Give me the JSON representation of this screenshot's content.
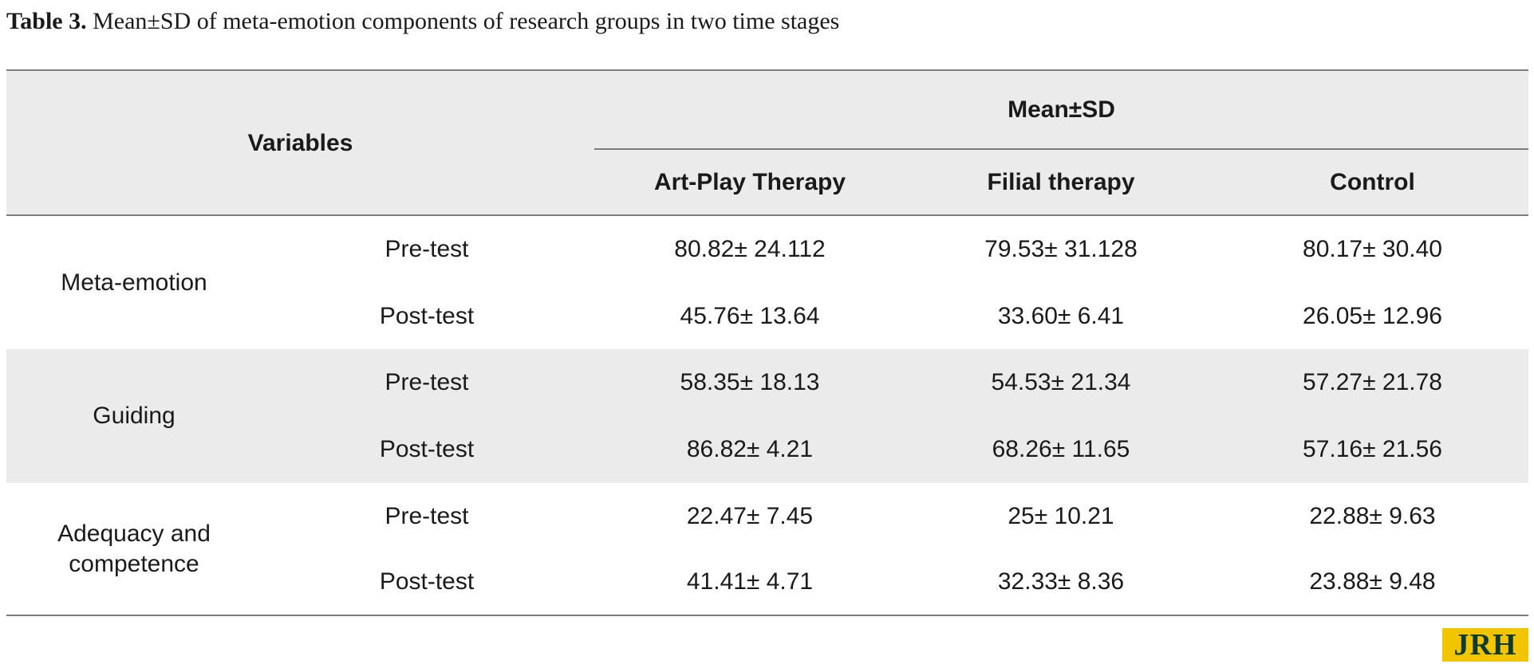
{
  "caption": {
    "label": "Table 3.",
    "text": "Mean±SD of meta-emotion components of research groups in two time stages"
  },
  "table": {
    "variables_header": "Variables",
    "group_header": "Mean±SD",
    "columns": [
      "Art-Play Therapy",
      "Filial therapy",
      "Control"
    ],
    "rows": [
      {
        "variable": "Meta-emotion",
        "stages": [
          {
            "stage": "Pre-test",
            "values": [
              "80.82± 24.112",
              "79.53± 31.128",
              "80.17± 30.40"
            ]
          },
          {
            "stage": "Post-test",
            "values": [
              "45.76± 13.64",
              "33.60± 6.41",
              "26.05± 12.96"
            ]
          }
        ]
      },
      {
        "variable": "Guiding",
        "stages": [
          {
            "stage": "Pre-test",
            "values": [
              "58.35± 18.13",
              "54.53± 21.34",
              "57.27± 21.78"
            ]
          },
          {
            "stage": "Post-test",
            "values": [
              "86.82± 4.21",
              "68.26± 11.65",
              "57.16± 21.56"
            ]
          }
        ]
      },
      {
        "variable": "Adequacy and competence",
        "stages": [
          {
            "stage": "Pre-test",
            "values": [
              "22.47± 7.45",
              "25± 10.21",
              "22.88± 9.63"
            ]
          },
          {
            "stage": "Post-test",
            "values": [
              "41.41± 4.71",
              "32.33± 8.36",
              "23.88± 9.48"
            ]
          }
        ]
      }
    ]
  },
  "logo": {
    "text": "JRH",
    "colors": {
      "background": "#f2c500",
      "text": "#0f3b2e"
    }
  },
  "colors": {
    "header_band": "#ebebeb",
    "rule": "#7d7d7d",
    "text": "#1a1a1a"
  }
}
